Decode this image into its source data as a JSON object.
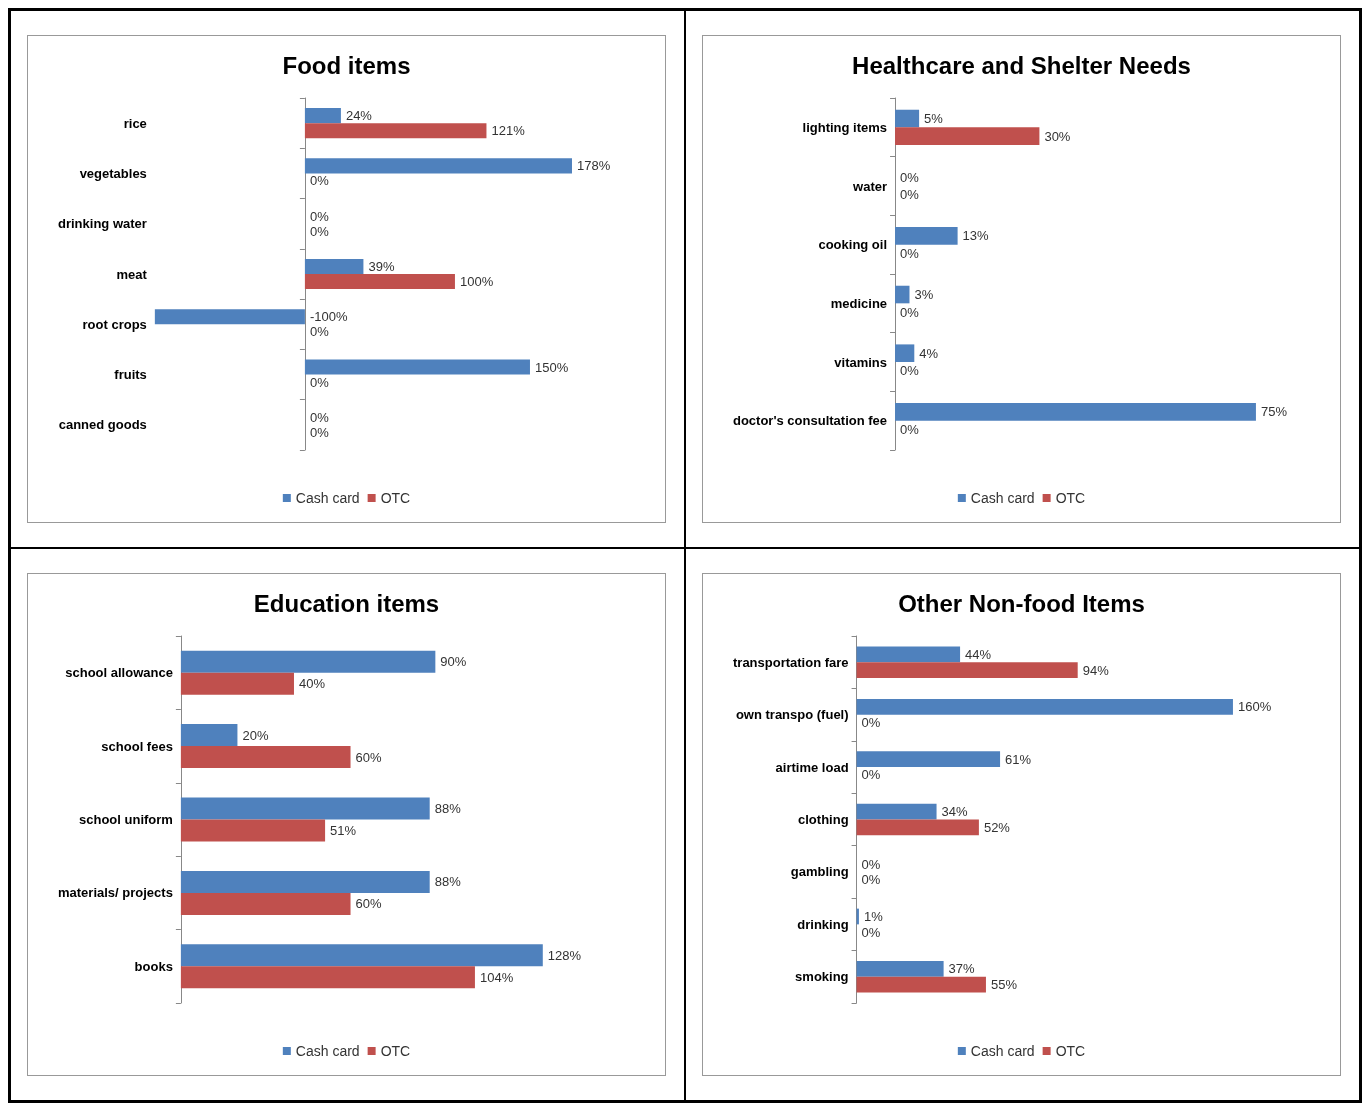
{
  "chart_data": [
    {
      "type": "bar",
      "orientation": "horizontal",
      "title": "Food items",
      "legend": "bottom",
      "categories": [
        "rice",
        "vegetables",
        "drinking water",
        "meat",
        "root crops",
        "fruits",
        "canned goods"
      ],
      "series": [
        {
          "name": "Cash card",
          "color": "#4f81bd",
          "values": [
            24,
            178,
            0,
            39,
            -100,
            150,
            0
          ],
          "value_labels": [
            "24%",
            "178%",
            "0%",
            "39%",
            "-100%",
            "150%",
            "0%"
          ]
        },
        {
          "name": "OTC",
          "color": "#c0504d",
          "values": [
            121,
            0,
            0,
            100,
            0,
            0,
            0
          ],
          "value_labels": [
            "121%",
            "0%",
            "0%",
            "100%",
            "0%",
            "0%",
            "0%"
          ]
        }
      ]
    },
    {
      "type": "bar",
      "orientation": "horizontal",
      "title": "Healthcare and Shelter Needs",
      "legend": "bottom",
      "categories": [
        "lighting items",
        "water",
        "cooking oil",
        "medicine",
        "vitamins",
        "doctor's consultation fee"
      ],
      "series": [
        {
          "name": "Cash card",
          "color": "#4f81bd",
          "values": [
            5,
            0,
            13,
            3,
            4,
            75
          ],
          "value_labels": [
            "5%",
            "0%",
            "13%",
            "3%",
            "4%",
            "75%"
          ]
        },
        {
          "name": "OTC",
          "color": "#c0504d",
          "values": [
            30,
            0,
            0,
            0,
            0,
            0
          ],
          "value_labels": [
            "30%",
            "0%",
            "0%",
            "0%",
            "0%",
            "0%"
          ]
        }
      ]
    },
    {
      "type": "bar",
      "orientation": "horizontal",
      "title": "Education items",
      "legend": "bottom",
      "categories": [
        "school allowance",
        "school fees",
        "school uniform",
        "materials/ projects",
        "books"
      ],
      "series": [
        {
          "name": "Cash card",
          "color": "#4f81bd",
          "values": [
            90,
            20,
            88,
            88,
            128
          ],
          "value_labels": [
            "90%",
            "20%",
            "88%",
            "88%",
            "128%"
          ]
        },
        {
          "name": "OTC",
          "color": "#c0504d",
          "values": [
            40,
            60,
            51,
            60,
            104
          ],
          "value_labels": [
            "40%",
            "60%",
            "51%",
            "60%",
            "104%"
          ]
        }
      ]
    },
    {
      "type": "bar",
      "orientation": "horizontal",
      "title": "Other Non-food Items",
      "legend": "bottom",
      "categories": [
        "transportation fare",
        "own transpo (fuel)",
        "airtime load",
        "clothing",
        "gambling",
        "drinking",
        "smoking"
      ],
      "series": [
        {
          "name": "Cash card",
          "color": "#4f81bd",
          "values": [
            44,
            160,
            61,
            34,
            0,
            1,
            37
          ],
          "value_labels": [
            "44%",
            "160%",
            "61%",
            "34%",
            "0%",
            "1%",
            "37%"
          ]
        },
        {
          "name": "OTC",
          "color": "#c0504d",
          "values": [
            94,
            0,
            0,
            52,
            0,
            0,
            55
          ],
          "value_labels": [
            "94%",
            "0%",
            "0%",
            "52%",
            "0%",
            "0%",
            "55%"
          ]
        }
      ]
    }
  ]
}
